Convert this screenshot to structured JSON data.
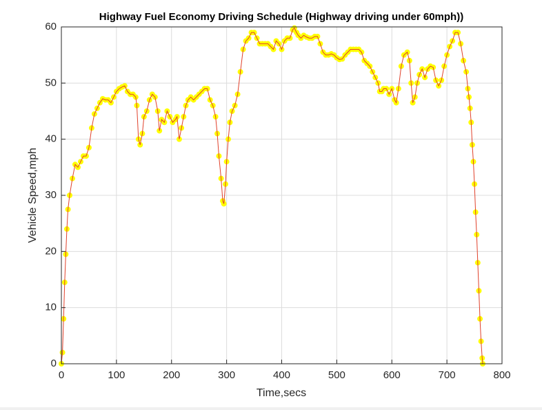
{
  "chart_data": {
    "type": "line",
    "title": "Highway Fuel Economy Driving Schedule (Highway driving under 60mph))",
    "x_label": "Time,secs",
    "y_label": "Vehicle Speed,mph",
    "xlim": [
      0,
      800
    ],
    "ylim": [
      0,
      60
    ],
    "xticks": [
      0,
      100,
      200,
      300,
      400,
      500,
      600,
      700,
      800
    ],
    "yticks": [
      0,
      10,
      20,
      30,
      40,
      50,
      60
    ],
    "grid": true,
    "series": [
      {
        "color": "#e0402a",
        "marker_color": "#ffff00",
        "x": [
          0,
          2,
          4,
          6,
          8,
          10,
          12,
          15,
          20,
          25,
          30,
          35,
          40,
          45,
          50,
          55,
          60,
          65,
          70,
          75,
          80,
          85,
          90,
          95,
          100,
          105,
          110,
          115,
          120,
          125,
          130,
          135,
          137,
          140,
          143,
          147,
          150,
          155,
          160,
          165,
          170,
          175,
          178,
          182,
          187,
          192,
          197,
          202,
          207,
          210,
          214,
          218,
          222,
          226,
          230,
          235,
          240,
          245,
          250,
          255,
          260,
          265,
          270,
          275,
          280,
          283,
          286,
          290,
          293,
          295,
          298,
          300,
          303,
          306,
          310,
          315,
          320,
          325,
          330,
          335,
          340,
          345,
          350,
          355,
          360,
          365,
          370,
          375,
          380,
          385,
          390,
          395,
          400,
          405,
          410,
          415,
          420,
          423,
          427,
          430,
          435,
          440,
          445,
          450,
          455,
          460,
          465,
          470,
          475,
          480,
          485,
          490,
          495,
          500,
          505,
          510,
          515,
          520,
          525,
          530,
          535,
          540,
          545,
          550,
          555,
          560,
          565,
          570,
          575,
          578,
          582,
          585,
          590,
          595,
          600,
          605,
          608,
          612,
          617,
          622,
          628,
          632,
          635,
          638,
          642,
          646,
          650,
          655,
          660,
          665,
          670,
          675,
          680,
          685,
          690,
          695,
          700,
          705,
          710,
          715,
          720,
          725,
          730,
          735,
          738,
          740,
          742,
          744,
          746,
          748,
          750,
          752,
          754,
          756,
          758,
          760,
          762,
          764,
          765
        ],
        "values": [
          0,
          2,
          8,
          14.5,
          19.5,
          24,
          27.5,
          30,
          33,
          35.5,
          35,
          36,
          37,
          37,
          38.5,
          42,
          44.5,
          45.5,
          46.5,
          47.2,
          47,
          47,
          46.5,
          47.5,
          48.5,
          49,
          49.3,
          49.5,
          48.5,
          48,
          48,
          47.5,
          46,
          40,
          39,
          41,
          44,
          45,
          47,
          48,
          47.5,
          45,
          41.5,
          43.5,
          43,
          45,
          44,
          43,
          43.5,
          44,
          40,
          42,
          44,
          46,
          47,
          47.5,
          47,
          47.5,
          48,
          48.5,
          49,
          49,
          47,
          46,
          44,
          41,
          37,
          33,
          29,
          28.5,
          32,
          36,
          40,
          43,
          45,
          46,
          48,
          52,
          56,
          57.5,
          58,
          59,
          59,
          58,
          57,
          57,
          57,
          57,
          56.5,
          56,
          57.5,
          57,
          56,
          57.5,
          58,
          58,
          59.5,
          59.8,
          59,
          58.5,
          58,
          58.5,
          58.2,
          58,
          58,
          58.3,
          58.3,
          57,
          55.5,
          55,
          55,
          55.2,
          55,
          54.5,
          54.2,
          54.3,
          55,
          55.5,
          56,
          56,
          56,
          56,
          55.5,
          54,
          53.5,
          53,
          52,
          51,
          50,
          48.5,
          48.5,
          49,
          49,
          48,
          49,
          47,
          46.5,
          49,
          53,
          55,
          55.5,
          54,
          50,
          46.5,
          47.5,
          50,
          51.5,
          52.5,
          51,
          52.5,
          53,
          52.8,
          50.5,
          49.5,
          50.5,
          53,
          55,
          56.5,
          57.5,
          59,
          59,
          57,
          54,
          52,
          49,
          47.5,
          45.5,
          43,
          39,
          36,
          32,
          27,
          23,
          18,
          13,
          8,
          4,
          1,
          0
        ]
      }
    ]
  }
}
